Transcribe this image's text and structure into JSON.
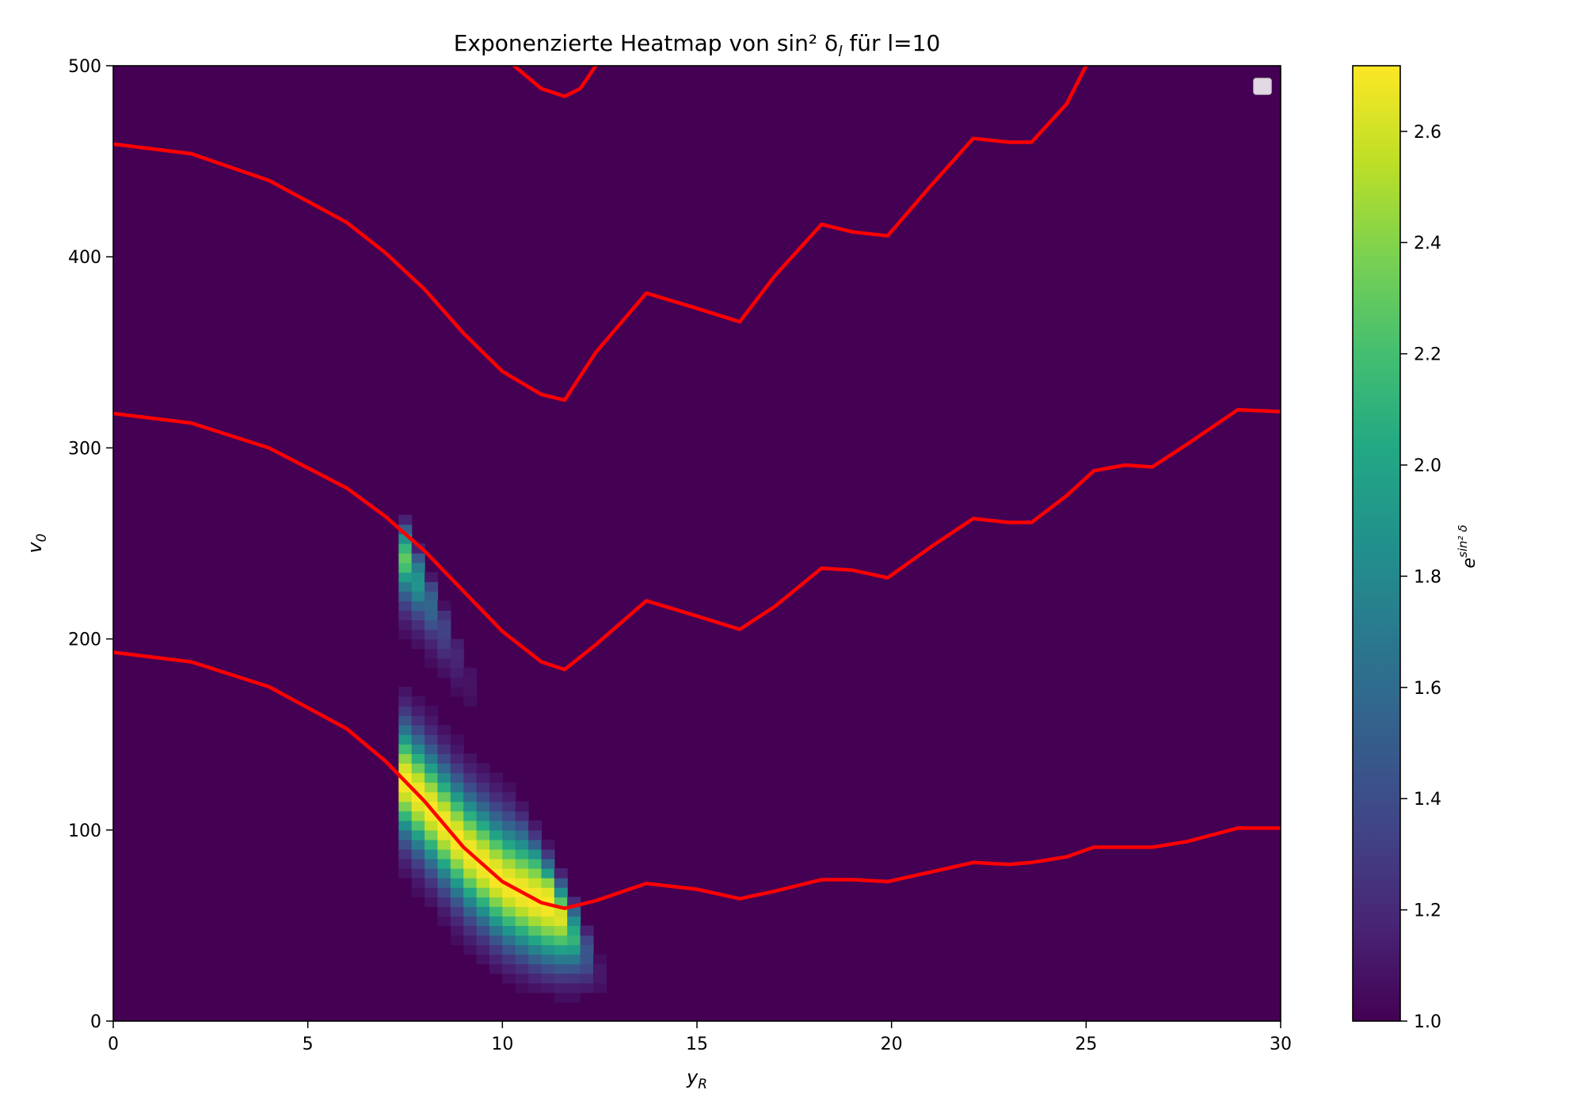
{
  "chart_data": {
    "type": "heatmap",
    "title": "Exponenzierte Heatmap von sin² δ",
    "title_sub": "l",
    "title_suffix": " für l=10",
    "xlabel": "y",
    "xlabel_sub": "R",
    "ylabel": "v",
    "ylabel_sub": "0",
    "xlim": [
      0,
      30
    ],
    "ylim": [
      0,
      500
    ],
    "x_ticks": [
      0,
      5,
      10,
      15,
      20,
      25,
      30
    ],
    "y_ticks": [
      0,
      100,
      200,
      300,
      400,
      500
    ],
    "colorbar": {
      "label": "e",
      "label_sup": "sin² δ",
      "range": [
        1.0,
        2.718
      ],
      "ticks": [
        "1.0",
        "1.2",
        "1.4",
        "1.6",
        "1.8",
        "2.0",
        "2.2",
        "2.4",
        "2.6"
      ],
      "colormap": "viridis"
    },
    "legend": {
      "placement": "top-right",
      "entries": []
    },
    "series": [
      {
        "color": "#ff0000",
        "x": [
          0,
          2,
          4,
          6,
          7,
          8,
          9,
          10,
          11,
          11.6,
          12.4,
          13.7,
          15,
          16.1,
          17,
          18.2,
          19,
          19.9,
          21,
          22.1,
          23,
          23.6,
          24.5,
          25.2,
          26,
          26.7,
          27.6,
          28.9,
          30
        ],
        "y": [
          193,
          188,
          175,
          153,
          136,
          115,
          91,
          73,
          62,
          59,
          63,
          72,
          69,
          64,
          68,
          74,
          74,
          73,
          78,
          83,
          82,
          83,
          86,
          91,
          91,
          91,
          94,
          101,
          101
        ]
      },
      {
        "color": "#ff0000",
        "x": [
          0,
          2,
          4,
          6,
          7,
          8,
          9,
          10,
          11,
          11.6,
          12.4,
          13.7,
          15,
          16.1,
          17,
          18.2,
          19,
          19.9,
          21,
          22.1,
          23,
          23.6,
          24.5,
          25.2,
          26,
          26.7,
          27.6,
          28.9,
          30
        ],
        "y": [
          318,
          313,
          300,
          279,
          264,
          246,
          225,
          204,
          188,
          184,
          197,
          220,
          212,
          205,
          217,
          237,
          236,
          232,
          248,
          263,
          261,
          261,
          275,
          288,
          291,
          290,
          302,
          320,
          319
        ]
      },
      {
        "color": "#ff0000",
        "x": [
          0,
          2,
          4,
          6,
          7,
          8,
          9,
          10,
          11,
          11.6,
          12.4,
          13.7,
          15,
          16.1,
          17,
          18.2,
          19,
          19.9,
          21,
          22.1,
          23,
          23.6,
          24.5,
          25
        ],
        "y": [
          459,
          454,
          440,
          418,
          402,
          383,
          360,
          340,
          328,
          325,
          350,
          381,
          373,
          366,
          390,
          417,
          413,
          411,
          437,
          462,
          460,
          460,
          480,
          500
        ]
      },
      {
        "color": "#ff0000",
        "x": [
          10.3,
          11,
          11.6,
          12,
          12.4
        ],
        "y": [
          500,
          488,
          484,
          488,
          500
        ]
      }
    ]
  }
}
